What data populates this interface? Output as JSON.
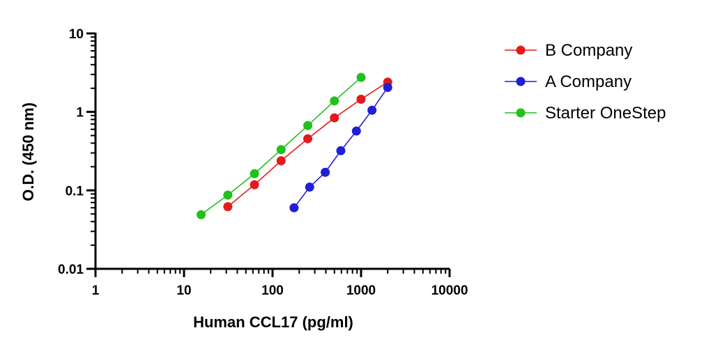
{
  "chart_data": {
    "type": "scatter",
    "title": "",
    "xlabel": "Human CCL17 (pg/ml)",
    "ylabel": "O.D. (450 nm)",
    "xscale": "log",
    "yscale": "log",
    "xlim": [
      1,
      10000
    ],
    "ylim": [
      0.01,
      10
    ],
    "xticks": [
      1,
      10,
      100,
      1000,
      10000
    ],
    "xtick_labels": [
      "1",
      "10",
      "100",
      "1000",
      "10000"
    ],
    "yticks": [
      0.01,
      0.1,
      1,
      10
    ],
    "ytick_labels": [
      "0.01",
      "0.1",
      "1",
      "10"
    ],
    "grid": false,
    "legend_position": "top-right",
    "series": [
      {
        "name": "B Company",
        "color": "#e41a1c",
        "x": [
          31.25,
          62.5,
          125,
          250,
          500,
          1000,
          2000
        ],
        "y": [
          0.062,
          0.118,
          0.238,
          0.455,
          0.84,
          1.45,
          2.4
        ]
      },
      {
        "name": "A Company",
        "color": "#1f1fd6",
        "x": [
          175,
          262.5,
          393.75,
          590.6,
          885.9,
          1328.9,
          2000
        ],
        "y": [
          0.06,
          0.11,
          0.17,
          0.32,
          0.57,
          1.05,
          2.05
        ]
      },
      {
        "name": "Starter OneStep",
        "color": "#22c01c",
        "x": [
          15.6,
          31.25,
          62.5,
          125,
          250,
          500,
          1000
        ],
        "y": [
          0.049,
          0.087,
          0.163,
          0.33,
          0.67,
          1.38,
          2.75
        ]
      }
    ]
  }
}
